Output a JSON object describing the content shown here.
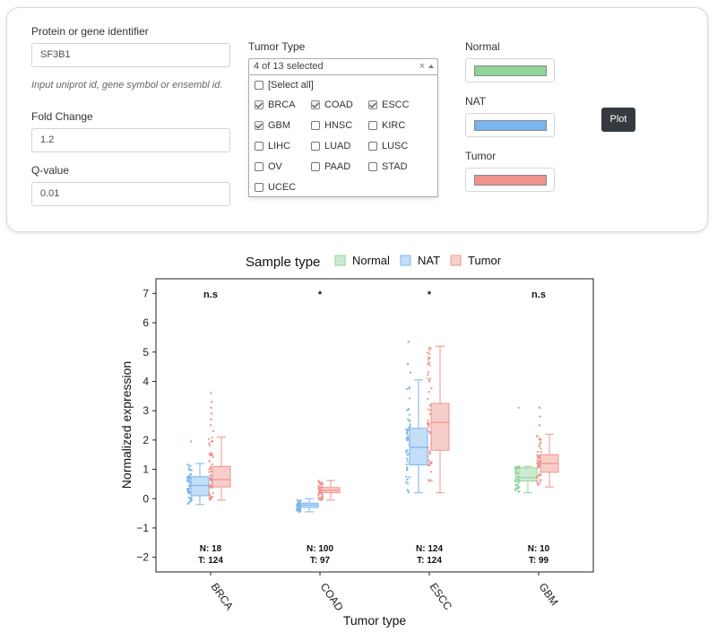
{
  "form": {
    "gene_label": "Protein or gene identifier",
    "gene_value": "SF3B1",
    "gene_help": "Input uniprot id, gene symbol or ensembl id.",
    "fc_label": "Fold Change",
    "fc_value": "1.2",
    "q_label": "Q-value",
    "q_value": "0.01"
  },
  "tumor_select": {
    "label": "Tumor Type",
    "summary": "4 of 13 selected",
    "clear": "×",
    "select_all": "[Select all]",
    "options": [
      {
        "label": "BRCA",
        "checked": true
      },
      {
        "label": "COAD",
        "checked": true
      },
      {
        "label": "ESCC",
        "checked": true
      },
      {
        "label": "GBM",
        "checked": true
      },
      {
        "label": "HNSC",
        "checked": false
      },
      {
        "label": "KIRC",
        "checked": false
      },
      {
        "label": "LIHC",
        "checked": false
      },
      {
        "label": "LUAD",
        "checked": false
      },
      {
        "label": "LUSC",
        "checked": false
      },
      {
        "label": "OV",
        "checked": false
      },
      {
        "label": "PAAD",
        "checked": false
      },
      {
        "label": "STAD",
        "checked": false
      },
      {
        "label": "UCEC",
        "checked": false
      }
    ]
  },
  "colors_panel": {
    "normal_label": "Normal",
    "nat_label": "NAT",
    "tumor_label": "Tumor",
    "normal_color": "#92d39a",
    "nat_color": "#79b6ed",
    "tumor_color": "#ef938c"
  },
  "plot_button": "Plot",
  "chart_data": {
    "type": "boxplot",
    "legend_title": "Sample type",
    "legend": [
      "Normal",
      "NAT",
      "Tumor"
    ],
    "colors": {
      "Normal": "#92d39a",
      "NAT": "#79b6ed",
      "Tumor": "#ef938c"
    },
    "xlabel": "Tumor type",
    "ylabel": "Normalized expression",
    "ylim": [
      -2.5,
      7.5
    ],
    "yticks": [
      -2,
      -1,
      0,
      1,
      2,
      3,
      4,
      5,
      6,
      7
    ],
    "categories": [
      "BRCA",
      "COAD",
      "ESCC",
      "GBM"
    ],
    "groups": [
      {
        "category": "BRCA",
        "significance": "n.s",
        "n_label": "N: 18",
        "t_label": "T: 124",
        "first": {
          "type": "NAT",
          "min": -0.2,
          "q1": 0.1,
          "median": 0.45,
          "q3": 0.75,
          "max": 1.2,
          "outliers": [
            1.95
          ]
        },
        "tumor": {
          "min": -0.05,
          "q1": 0.4,
          "median": 0.65,
          "q3": 1.1,
          "max": 2.1,
          "outliers": [
            2.3,
            2.5,
            2.7,
            2.9,
            3.1,
            3.3,
            3.6
          ]
        }
      },
      {
        "category": "COAD",
        "significance": "*",
        "n_label": "N: 100",
        "t_label": "T: 97",
        "first": {
          "type": "NAT",
          "min": -0.45,
          "q1": -0.3,
          "median": -0.22,
          "q3": -0.15,
          "max": 0.0,
          "outliers": []
        },
        "tumor": {
          "min": -0.05,
          "q1": 0.2,
          "median": 0.28,
          "q3": 0.38,
          "max": 0.62,
          "outliers": []
        }
      },
      {
        "category": "ESCC",
        "significance": "*",
        "n_label": "N: 124",
        "t_label": "T: 124",
        "first": {
          "type": "NAT",
          "min": 0.2,
          "q1": 1.15,
          "median": 1.75,
          "q3": 2.4,
          "max": 4.05,
          "outliers": [
            4.3,
            4.6,
            5.35
          ]
        },
        "tumor": {
          "min": 0.2,
          "q1": 1.65,
          "median": 2.6,
          "q3": 3.25,
          "max": 5.2,
          "outliers": []
        }
      },
      {
        "category": "GBM",
        "significance": "n.s",
        "n_label": "N: 10",
        "t_label": "T: 99",
        "first": {
          "type": "Normal",
          "min": 0.2,
          "q1": 0.6,
          "median": 0.72,
          "q3": 1.05,
          "max": 1.1,
          "outliers": [
            3.1
          ]
        },
        "tumor": {
          "min": 0.4,
          "q1": 0.9,
          "median": 1.2,
          "q3": 1.5,
          "max": 2.2,
          "outliers": [
            2.5,
            2.8,
            3.1
          ]
        }
      }
    ]
  }
}
